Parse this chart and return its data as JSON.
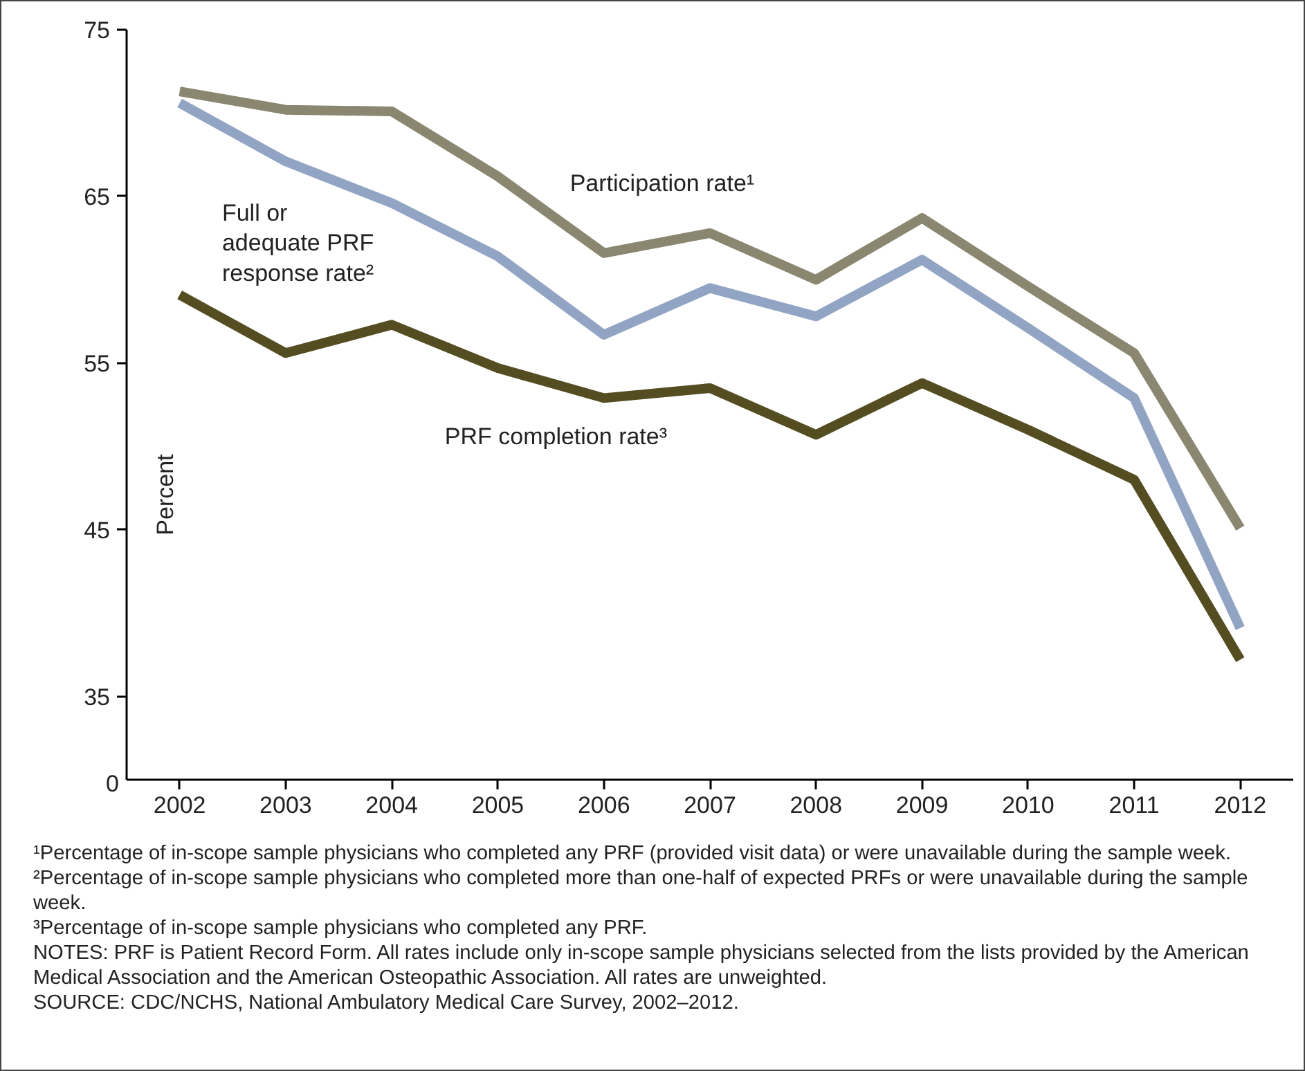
{
  "chart_data": {
    "type": "line",
    "ylabel": "Percent",
    "x": [
      2002,
      2003,
      2004,
      2005,
      2006,
      2007,
      2008,
      2009,
      2010,
      2011,
      2012
    ],
    "xlim": [
      2001.5,
      2012.5
    ],
    "xticks": [
      2002,
      2003,
      2004,
      2005,
      2006,
      2007,
      2008,
      2009,
      2010,
      2011,
      2012
    ],
    "ylim": [
      30,
      75
    ],
    "yticks": [
      35,
      45,
      55,
      65,
      75
    ],
    "grid": false,
    "legend": false,
    "marker": "none",
    "line_style": "solid",
    "series": [
      {
        "name": "Participation rate¹",
        "color": "#8a8670",
        "values": [
          71.3,
          70.2,
          70.1,
          66.2,
          61.6,
          62.8,
          60.0,
          63.7,
          59.6,
          55.6,
          45.1
        ]
      },
      {
        "name": "Full or adequate PRF response rate²",
        "color": "#92a4c4",
        "values": [
          70.6,
          67.1,
          64.6,
          61.4,
          56.7,
          59.5,
          57.8,
          61.2,
          57.1,
          52.9,
          39.1
        ]
      },
      {
        "name": "PRF completion rate³",
        "color": "#554d22",
        "values": [
          59.1,
          55.6,
          57.3,
          54.7,
          52.9,
          53.5,
          50.7,
          53.8,
          51.0,
          48.0,
          37.2
        ]
      }
    ],
    "annotations": [
      "0",
      "¹Percentage of in-scope sample physicians who completed any PRF (provided visit data) or were unavailable during the sample week.",
      "²Percentage of in-scope sample physicians who completed more than one-half of expected PRFs or were unavailable during the sample week.",
      "³Percentage of in-scope sample physicians who completed any PRF.",
      "NOTES: PRF is Patient Record Form. All rates include only in-scope sample physicians selected from the lists provided by the American Medical Association and the American Osteopathic Association. All rates are unweighted.",
      "SOURCE: CDC/NCHS, National Ambulatory Medical Care Survey, 2002–2012."
    ]
  }
}
